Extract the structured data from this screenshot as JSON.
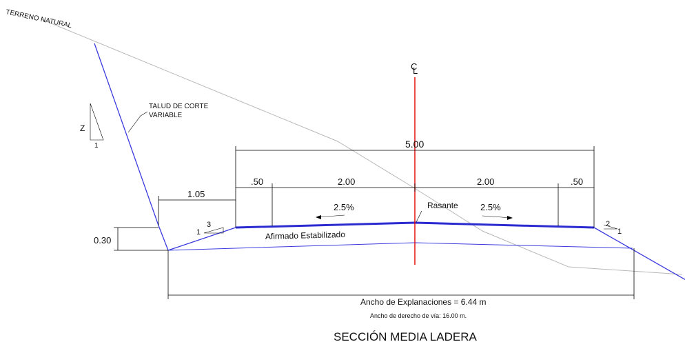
{
  "labels": {
    "terrain": "TERRENO NATURAL",
    "cut_slope_line1": "TALUD DE CORTE",
    "cut_slope_line2": "VARIABLE",
    "slope_z": "Z",
    "slope_z_one": "1",
    "centerline_c": "C",
    "centerline_l": "L",
    "total_width": "5.00",
    "left_shoulder": ".50",
    "left_lane": "2.00",
    "right_lane": "2.00",
    "right_shoulder": ".50",
    "ditch_width": "1.05",
    "left_slope_pct": "2.5%",
    "right_slope_pct": "2.5%",
    "rasante": "Rasante",
    "left_fill_3": "3",
    "left_fill_1": "1",
    "right_fill_2": "2",
    "right_fill_1": "1",
    "depth": "0.30",
    "surface": "Afirmado Estabilizado",
    "explanation_width": "Ancho de Explanaciones = 6.44 m",
    "row_width": "Ancho de derecho de vía: 16.00 m.",
    "title": "SECCIÓN MEDIA LADERA"
  },
  "colors": {
    "cut_line": "#3a3ae0",
    "road": "#2a2ad0",
    "centerline": "#e01010",
    "terrain": "#b8b8b8",
    "dimension": "#000000"
  }
}
